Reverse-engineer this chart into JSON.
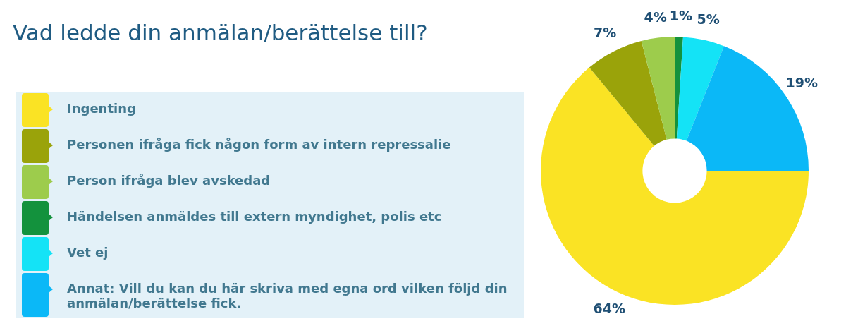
{
  "chart_data": {
    "type": "donut",
    "title": "Vad ledde din anmälan/berättelse till?",
    "categories": [
      "Ingenting",
      "Personen ifråga fick någon form av intern repressalie",
      "Person ifråga blev avskedad",
      "Händelsen anmäldes till extern myndighet, polis etc",
      "Vet ej",
      "Annat: Vill du kan du här skriva med egna ord vilken följd din anmälan/berättelse fick."
    ],
    "values": [
      64,
      7,
      4,
      1,
      5,
      19
    ],
    "value_labels": [
      "64%",
      "7%",
      "4%",
      "1%",
      "5%",
      "19%"
    ],
    "colors": [
      "#fae324",
      "#9aa30a",
      "#9dcc4c",
      "#13923d",
      "#14e3f6",
      "#0bb8f7"
    ],
    "legend": "left"
  }
}
